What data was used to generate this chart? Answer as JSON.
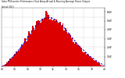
{
  "title": "Solar PV/Inverter Performance East Array Actual & Running Average Power Output",
  "subtitle": "Actual kW:h",
  "bg_color": "#ffffff",
  "plot_bg": "#ffffff",
  "bar_color": "#dd0000",
  "line_color": "#0000dd",
  "grid_color": "#aaaaaa",
  "n_bars": 80,
  "peak_index": 35,
  "ylim": [
    0,
    1.08
  ],
  "ylabel_values": [
    "6kW",
    "5kW",
    "4kW",
    "3kW",
    "2kW",
    "1kW"
  ],
  "ylabel_fracs": [
    0.93,
    0.78,
    0.63,
    0.47,
    0.32,
    0.16
  ],
  "xtick_labels": [
    "04",
    "06",
    "08",
    "10",
    "12",
    "14",
    "16",
    "18",
    "20"
  ],
  "n_xgrid": 10,
  "n_ygrid": 7
}
